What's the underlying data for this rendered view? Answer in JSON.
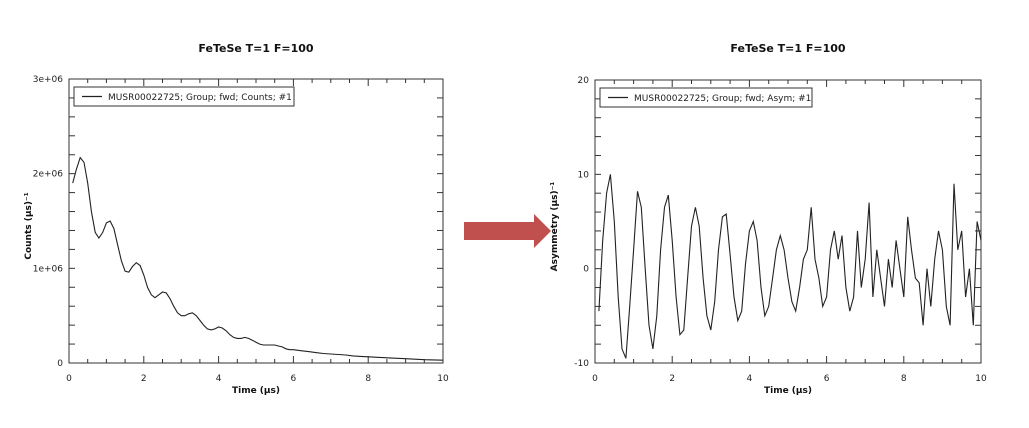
{
  "arrow_color": "#c0504d",
  "chart_data": [
    {
      "type": "line",
      "title": "FeTeSe T=1 F=100",
      "xlabel": "Time (µs)",
      "ylabel": "Counts (µs)⁻¹",
      "xlim": [
        0,
        10
      ],
      "ylim": [
        0,
        3000000
      ],
      "x_ticks": [
        "0",
        "2",
        "4",
        "6",
        "8",
        "10"
      ],
      "y_ticks": [
        "0",
        "1e+06",
        "2e+06",
        "3e+06"
      ],
      "legend": "top-left",
      "grid": false,
      "series": [
        {
          "name": "MUSR00022725; Group; fwd; Counts; #1",
          "color": "#222222",
          "x": [
            0.1,
            0.2,
            0.3,
            0.4,
            0.5,
            0.6,
            0.7,
            0.8,
            0.9,
            1.0,
            1.1,
            1.2,
            1.3,
            1.4,
            1.5,
            1.6,
            1.7,
            1.8,
            1.9,
            2.0,
            2.1,
            2.2,
            2.3,
            2.4,
            2.5,
            2.6,
            2.7,
            2.8,
            2.9,
            3.0,
            3.1,
            3.2,
            3.3,
            3.4,
            3.5,
            3.6,
            3.7,
            3.8,
            3.9,
            4.0,
            4.1,
            4.2,
            4.3,
            4.4,
            4.5,
            4.6,
            4.7,
            4.8,
            4.9,
            5.0,
            5.1,
            5.2,
            5.3,
            5.4,
            5.5,
            5.6,
            5.7,
            5.8,
            5.9,
            6.0,
            6.2,
            6.4,
            6.6,
            6.8,
            7.0,
            7.2,
            7.4,
            7.6,
            7.8,
            8.0,
            8.5,
            9.0,
            9.5,
            10.0
          ],
          "y": [
            1900000.0,
            2050000.0,
            2170000.0,
            2120000.0,
            1900000.0,
            1600000.0,
            1380000.0,
            1320000.0,
            1380000.0,
            1480000.0,
            1500000.0,
            1420000.0,
            1250000.0,
            1080000.0,
            970000.0,
            960000.0,
            1020000.0,
            1060000.0,
            1030000.0,
            930000.0,
            800000.0,
            720000.0,
            690000.0,
            720000.0,
            750000.0,
            740000.0,
            680000.0,
            600000.0,
            530000.0,
            500000.0,
            500000.0,
            520000.0,
            530000.0,
            500000.0,
            450000.0,
            400000.0,
            360000.0,
            350000.0,
            360000.0,
            380000.0,
            370000.0,
            340000.0,
            300000.0,
            270000.0,
            260000.0,
            260000.0,
            270000.0,
            260000.0,
            240000.0,
            220000.0,
            200000.0,
            190000.0,
            190000.0,
            190000.0,
            190000.0,
            180000.0,
            170000.0,
            150000.0,
            140000.0,
            140000.0,
            130000.0,
            120000.0,
            110000.0,
            100000.0,
            95000.0,
            90000.0,
            85000.0,
            75000.0,
            70000.0,
            65000.0,
            55000.0,
            45000.0,
            35000.0,
            30000.0
          ]
        }
      ]
    },
    {
      "type": "line",
      "title": "FeTeSe T=1 F=100",
      "xlabel": "Time (µs)",
      "ylabel": "Asymmetry (µs)⁻¹",
      "xlim": [
        0,
        10
      ],
      "ylim": [
        -10,
        20
      ],
      "x_ticks": [
        "0",
        "2",
        "4",
        "6",
        "8",
        "10"
      ],
      "y_ticks": [
        "-10",
        "0",
        "10",
        "20"
      ],
      "legend": "top-left",
      "grid": false,
      "series": [
        {
          "name": "MUSR00022725; Group; fwd; Asym; #1",
          "color": "#222222",
          "x": [
            0.1,
            0.2,
            0.3,
            0.4,
            0.5,
            0.6,
            0.7,
            0.8,
            0.9,
            1.0,
            1.1,
            1.2,
            1.3,
            1.4,
            1.5,
            1.6,
            1.7,
            1.8,
            1.9,
            2.0,
            2.1,
            2.2,
            2.3,
            2.4,
            2.5,
            2.6,
            2.7,
            2.8,
            2.9,
            3.0,
            3.1,
            3.2,
            3.3,
            3.4,
            3.5,
            3.6,
            3.7,
            3.8,
            3.9,
            4.0,
            4.1,
            4.2,
            4.3,
            4.4,
            4.5,
            4.6,
            4.7,
            4.8,
            4.9,
            5.0,
            5.1,
            5.2,
            5.3,
            5.4,
            5.5,
            5.6,
            5.7,
            5.8,
            5.9,
            6.0,
            6.1,
            6.2,
            6.3,
            6.4,
            6.5,
            6.6,
            6.7,
            6.8,
            6.9,
            7.0,
            7.1,
            7.2,
            7.3,
            7.4,
            7.5,
            7.6,
            7.7,
            7.8,
            7.9,
            8.0,
            8.1,
            8.2,
            8.3,
            8.4,
            8.5,
            8.6,
            8.7,
            8.8,
            8.9,
            9.0,
            9.1,
            9.2,
            9.3,
            9.4,
            9.5,
            9.6,
            9.7,
            9.8,
            9.9,
            10.0
          ],
          "y": [
            -4.5,
            3,
            8,
            10,
            5,
            -3,
            -8.5,
            -9.5,
            -4,
            2,
            8.2,
            6.5,
            0,
            -6,
            -8.5,
            -5,
            2,
            6.5,
            7.8,
            3,
            -3,
            -7,
            -6.5,
            -1,
            4.5,
            6.5,
            4.5,
            -1,
            -5,
            -6.5,
            -3.5,
            2,
            5.5,
            5.8,
            1.5,
            -3,
            -5.5,
            -4.5,
            0.5,
            4,
            5,
            3,
            -2,
            -5,
            -4,
            -1,
            2,
            3.5,
            2,
            -1,
            -3.5,
            -4.5,
            -2,
            1,
            2,
            6.5,
            1,
            -1,
            -4,
            -3,
            2,
            4,
            1,
            3.5,
            -2,
            -4.5,
            -3,
            4,
            -2,
            1,
            7,
            -3,
            2,
            -1,
            -4,
            1,
            -2,
            3,
            0,
            -3,
            5.5,
            2,
            -1,
            -1.5,
            -6,
            0,
            -4,
            1,
            4,
            2,
            -4,
            -6,
            9,
            2,
            4,
            -3,
            0,
            -6,
            5,
            3
          ]
        }
      ]
    }
  ]
}
